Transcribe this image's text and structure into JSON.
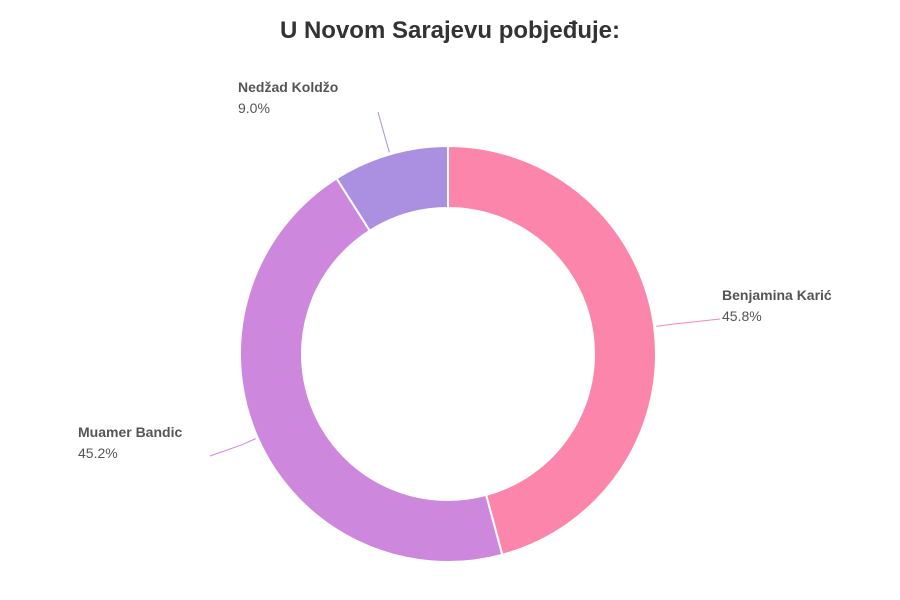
{
  "chart_data": {
    "type": "pie",
    "title": "U Novom Sarajevu pobjeđuje:",
    "slices": [
      {
        "name": "Benjamina Karić",
        "value": 45.8,
        "label": "45.8%",
        "color": "#fc86ab"
      },
      {
        "name": "Muamer Bandic",
        "value": 45.2,
        "label": "45.2%",
        "color": "#cd88dd"
      },
      {
        "name": "Nedžad Koldžo",
        "value": 9.0,
        "label": "9.0%",
        "color": "#ab8fe0"
      }
    ]
  }
}
